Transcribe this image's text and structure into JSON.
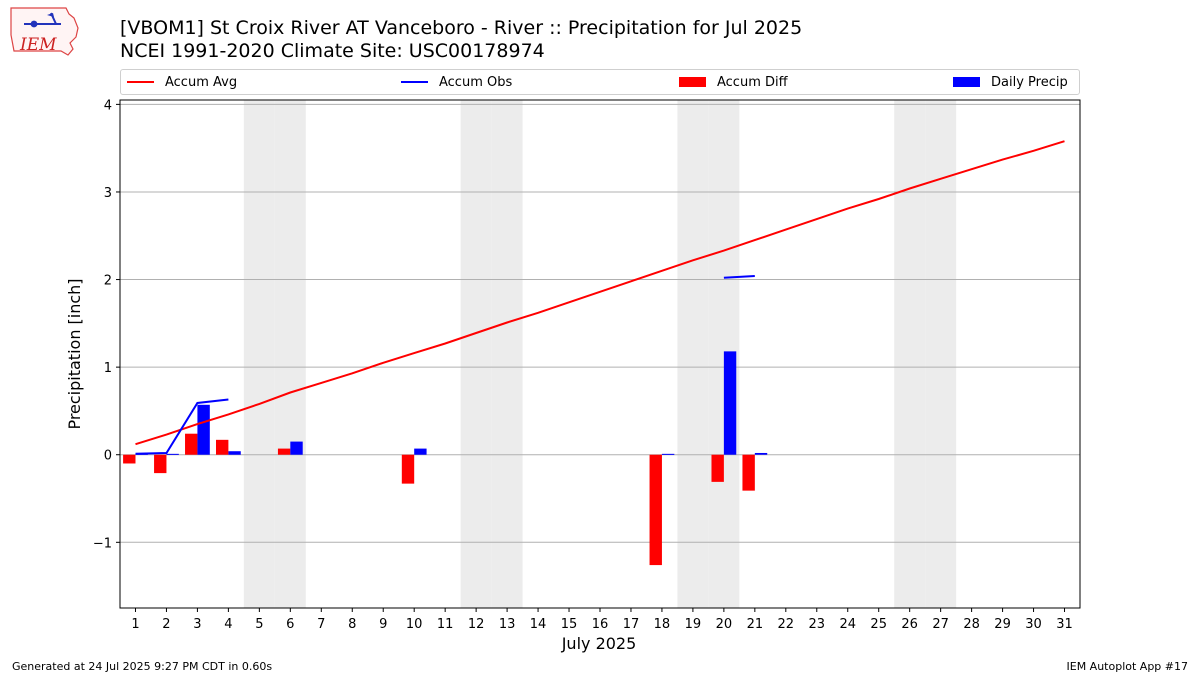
{
  "header": {
    "title_line1": "[VBOM1] St Croix River  AT Vanceboro - River :: Precipitation for Jul 2025",
    "title_line2": "NCEI 1991-2020 Climate Site: USC00178974",
    "logo_text": "IEM"
  },
  "footer": {
    "generated": "Generated at 24 Jul 2025 9:27 PM CDT in 0.60s",
    "app": "IEM Autoplot App #17"
  },
  "legend": {
    "accum_avg": "Accum Avg",
    "accum_obs": "Accum Obs",
    "accum_diff": "Accum Diff",
    "daily_precip": "Daily Precip"
  },
  "colors": {
    "avg": "#ff0000",
    "obs": "#0000ff",
    "diff": "#ff0000",
    "daily": "#0000ff",
    "weekend_shade": "#ececec",
    "grid": "#b0b0b0"
  },
  "chart_data": {
    "type": "bar",
    "xlabel": "July 2025",
    "ylabel": "Precipitation [inch]",
    "xlim": [
      0.5,
      31.5
    ],
    "ylim": [
      -1.75,
      4.05
    ],
    "yticks": [
      -1,
      0,
      1,
      2,
      3,
      4
    ],
    "ytick_labels": [
      "−1",
      "0",
      "1",
      "2",
      "3",
      "4"
    ],
    "x": [
      1,
      2,
      3,
      4,
      5,
      6,
      7,
      8,
      9,
      10,
      11,
      12,
      13,
      14,
      15,
      16,
      17,
      18,
      19,
      20,
      21,
      22,
      23,
      24,
      25,
      26,
      27,
      28,
      29,
      30,
      31
    ],
    "weekend_days": [
      5,
      6,
      12,
      13,
      19,
      20,
      26,
      27
    ],
    "grid": "horizontal",
    "legend_position": "top",
    "series": [
      {
        "name": "Accum Avg",
        "kind": "line",
        "values": [
          0.12,
          0.23,
          0.35,
          0.46,
          0.58,
          0.71,
          0.82,
          0.93,
          1.05,
          1.16,
          1.27,
          1.39,
          1.51,
          1.62,
          1.74,
          1.86,
          1.98,
          2.1,
          2.22,
          2.33,
          2.45,
          2.57,
          2.69,
          2.81,
          2.92,
          3.04,
          3.15,
          3.26,
          3.37,
          3.47,
          3.58
        ]
      },
      {
        "name": "Accum Obs",
        "kind": "line",
        "values": [
          0.01,
          0.02,
          0.59,
          0.63,
          null,
          null,
          null,
          null,
          null,
          null,
          null,
          null,
          null,
          null,
          null,
          null,
          null,
          null,
          null,
          2.02,
          2.04,
          null,
          null,
          null,
          null,
          null,
          null,
          null,
          null,
          null,
          null
        ]
      },
      {
        "name": "Accum Diff",
        "kind": "bar",
        "values": [
          -0.1,
          -0.21,
          0.24,
          0.17,
          null,
          0.07,
          null,
          null,
          null,
          -0.33,
          null,
          null,
          null,
          null,
          null,
          null,
          null,
          -1.26,
          null,
          -0.31,
          -0.41,
          null,
          null,
          null,
          null,
          null,
          null,
          null,
          null,
          null,
          null
        ]
      },
      {
        "name": "Daily Precip",
        "kind": "bar",
        "values": [
          0.01,
          0.01,
          0.57,
          0.04,
          null,
          0.15,
          null,
          null,
          null,
          0.07,
          null,
          null,
          null,
          null,
          null,
          null,
          null,
          0.01,
          null,
          1.18,
          0.02,
          null,
          null,
          null,
          null,
          null,
          null,
          null,
          null,
          null,
          null
        ]
      }
    ]
  }
}
